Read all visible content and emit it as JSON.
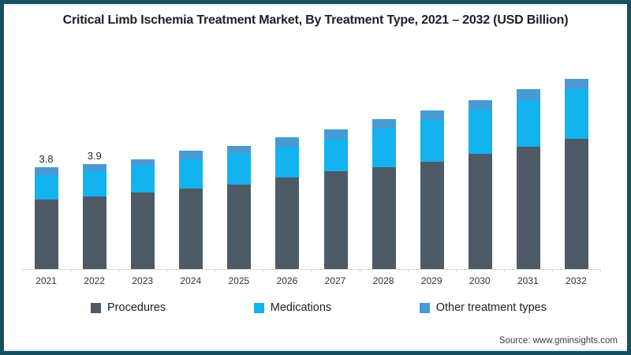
{
  "title": "Critical Limb Ischemia Treatment Market, By Treatment Type, 2021 – 2032 (USD Billion)",
  "source": "Source: www.gminsights.com",
  "colors": {
    "procedures": "#4e5a66",
    "medications": "#12b3ef",
    "other": "#479bd5",
    "frame": "#14505f",
    "axis": "#d8d8d8"
  },
  "legend": [
    {
      "label": "Procedures",
      "color_key": "procedures"
    },
    {
      "label": "Medications",
      "color_key": "medications"
    },
    {
      "label": "Other treatment types",
      "color_key": "other"
    }
  ],
  "chart_data": {
    "type": "bar",
    "stacked": true,
    "title": "Critical Limb Ischemia Treatment Market, By Treatment Type, 2021 – 2032 (USD Billion)",
    "unit": "USD Billion",
    "categories": [
      "2021",
      "2022",
      "2023",
      "2024",
      "2025",
      "2026",
      "2027",
      "2028",
      "2029",
      "2030",
      "2031",
      "2032"
    ],
    "series": [
      {
        "name": "Procedures",
        "color_key": "procedures",
        "values": [
          2.6,
          2.7,
          2.85,
          3.0,
          3.15,
          3.4,
          3.65,
          3.8,
          4.0,
          4.3,
          4.55,
          4.85
        ]
      },
      {
        "name": "Medications",
        "color_key": "medications",
        "values": [
          0.9,
          0.95,
          1.0,
          1.1,
          1.15,
          1.15,
          1.2,
          1.45,
          1.55,
          1.65,
          1.75,
          1.85
        ]
      },
      {
        "name": "Other treatment types",
        "color_key": "other",
        "values": [
          0.3,
          0.25,
          0.25,
          0.3,
          0.3,
          0.35,
          0.35,
          0.35,
          0.35,
          0.35,
          0.4,
          0.4
        ]
      }
    ],
    "totals": [
      3.8,
      3.9,
      4.1,
      4.4,
      4.6,
      4.9,
      5.2,
      5.6,
      5.9,
      6.3,
      6.7,
      7.1
    ],
    "bar_labels": [
      "3.8",
      "3.9",
      "",
      "",
      "",
      "",
      "",
      "",
      "",
      "",
      "",
      ""
    ],
    "ylim": [
      0,
      7.5
    ],
    "grid": false,
    "legend_position": "bottom"
  }
}
